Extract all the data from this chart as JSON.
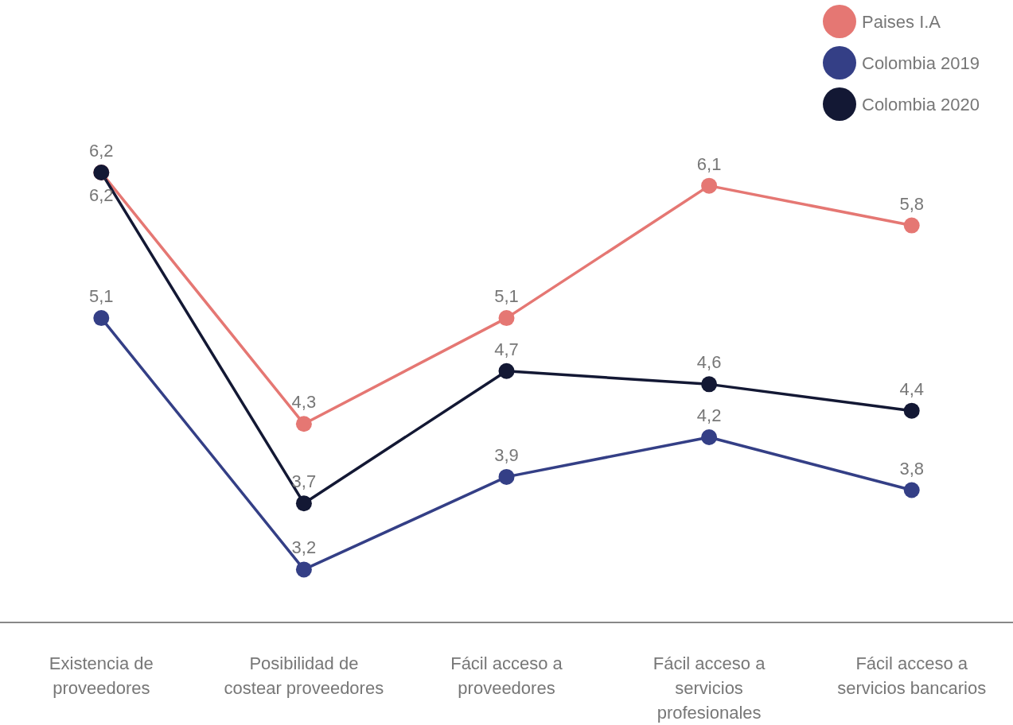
{
  "chart_data": {
    "type": "line",
    "categories": [
      "Existencia de proveedores",
      "Posibilidad de costear proveedores",
      "Fácil acceso a proveedores",
      "Fácil acceso a servicios profesionales",
      "Fácil acceso a servicios bancarios"
    ],
    "series": [
      {
        "name": "Paises I.A",
        "color": "#e57773",
        "values": [
          6.2,
          4.3,
          5.1,
          6.1,
          5.8
        ],
        "value_labels": [
          "6,2",
          "4,3",
          "5,1",
          "6,1",
          "5,8"
        ]
      },
      {
        "name": "Colombia 2019",
        "color": "#343f86",
        "values": [
          5.1,
          3.2,
          3.9,
          4.2,
          3.8
        ],
        "value_labels": [
          "5,1",
          "3,2",
          "3,9",
          "4,2",
          "3,8"
        ]
      },
      {
        "name": "Colombia 2020",
        "color": "#131834",
        "values": [
          6.2,
          3.7,
          4.7,
          4.6,
          4.4
        ],
        "value_labels": [
          "6,2",
          "3,7",
          "4,7",
          "4,6",
          "4,4"
        ]
      }
    ],
    "legend": "top right",
    "marker": "circle",
    "line_style": "solid"
  }
}
